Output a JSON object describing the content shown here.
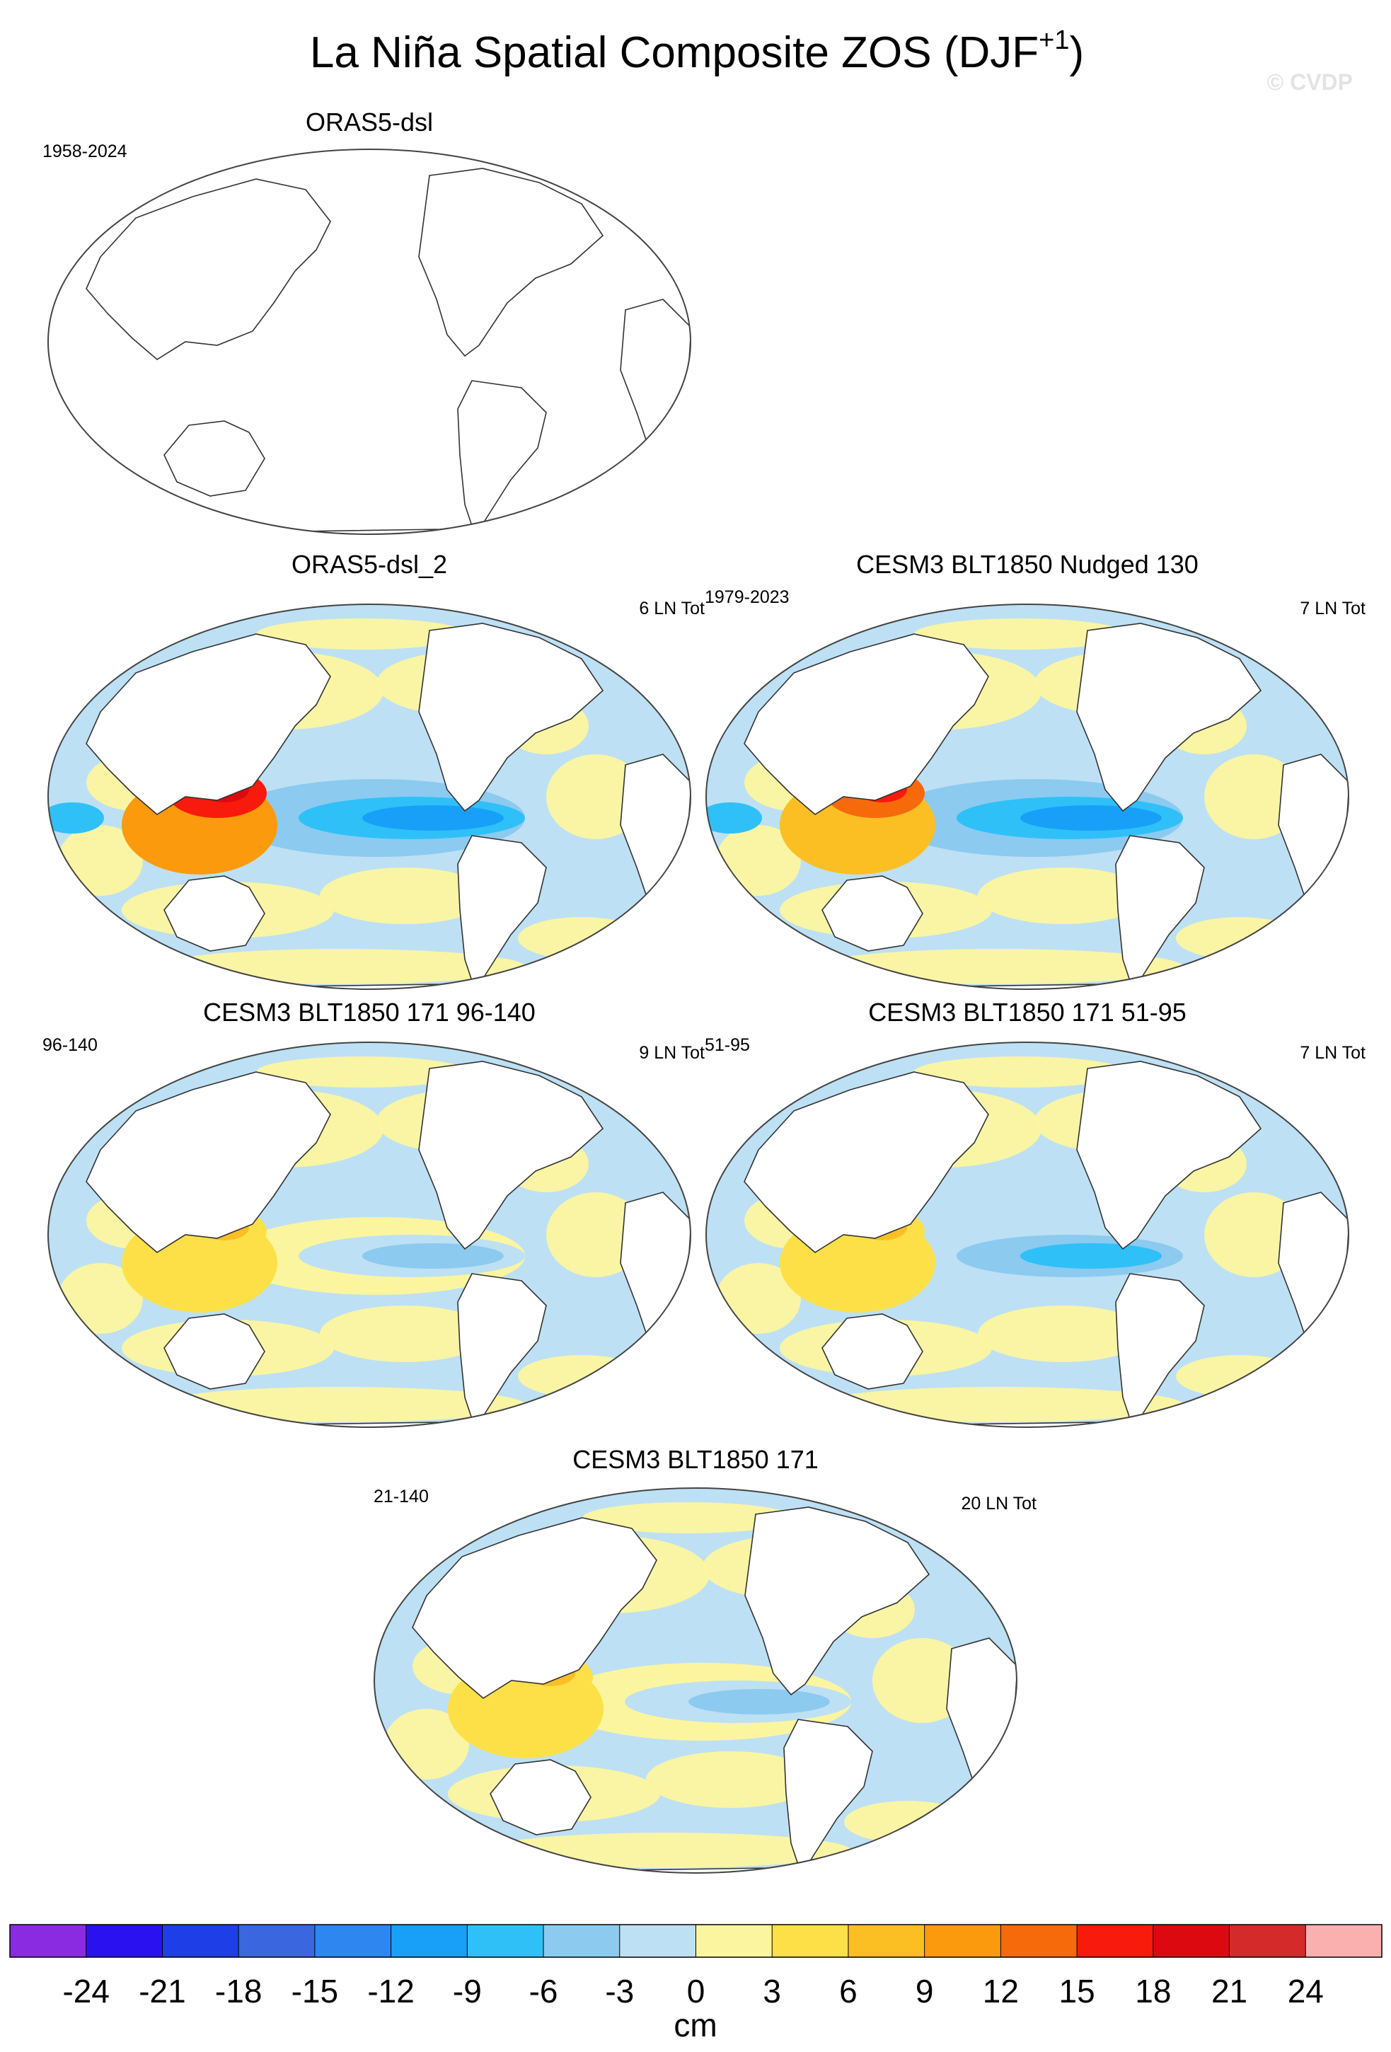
{
  "figure": {
    "title": "La Niña Spatial Composite ZOS (DJF",
    "title_superscript": "+1",
    "title_suffix": ")",
    "watermark": "© CVDP"
  },
  "panels": [
    {
      "id": "p1",
      "title": "ORAS5-dsl",
      "left_label": "1958-2024",
      "right_label": "",
      "pattern": "blank"
    },
    {
      "id": "p2",
      "title": "ORAS5-dsl_2",
      "left_label": "",
      "right_label": "6 LN Tot",
      "pattern": "strong"
    },
    {
      "id": "p3",
      "title": "CESM3 BLT1850 Nudged 130",
      "left_label": "1979-2023",
      "right_label": "7 LN Tot",
      "pattern": "strong"
    },
    {
      "id": "p4",
      "title": "CESM3 BLT1850 171 96-140",
      "left_label": "96-140",
      "right_label": "9 LN Tot",
      "pattern": "weak"
    },
    {
      "id": "p5",
      "title": "CESM3 BLT1850 171 51-95",
      "left_label": "51-95",
      "right_label": "7 LN Tot",
      "pattern": "weak"
    },
    {
      "id": "p6",
      "title": "CESM3 BLT1850 171",
      "left_label": "21-140",
      "right_label": "20 LN Tot",
      "pattern": "weak"
    }
  ],
  "chart_data": {
    "type": "heatmap",
    "variable": "ZOS",
    "season": "DJF+1",
    "projection": "Robinson (Pacific-centered)",
    "colorbar": {
      "label": "cm",
      "ticks": [
        "-24",
        "-21",
        "-18",
        "-15",
        "-12",
        "-9",
        "-6",
        "-3",
        "0",
        "3",
        "6",
        "9",
        "12",
        "15",
        "18",
        "21",
        "24"
      ],
      "colors": [
        "#8a2be2",
        "#2a12f0",
        "#1e3ee8",
        "#3a66e0",
        "#2e86f0",
        "#18a0f8",
        "#2fc0f8",
        "#8ccaf0",
        "#bde0f4",
        "#fcf5a0",
        "#fde047",
        "#fbbf24",
        "#fa9a0c",
        "#f66a0c",
        "#f81a0c",
        "#dc0a10",
        "#d42a2a",
        "#fbb0b0"
      ]
    },
    "panel_composites": [
      {
        "panel": "ORAS5-dsl",
        "years": "1958-2024",
        "events": "",
        "west_pacific_max_cm": null,
        "east_pacific_min_cm": null
      },
      {
        "panel": "ORAS5-dsl_2",
        "years": "",
        "events": "6 LN Tot",
        "west_pacific_max_cm": 18,
        "east_pacific_min_cm": -12
      },
      {
        "panel": "CESM3 BLT1850 Nudged 130",
        "years": "1979-2023",
        "events": "7 LN Tot",
        "west_pacific_max_cm": 15,
        "east_pacific_min_cm": -12
      },
      {
        "panel": "CESM3 BLT1850 171 96-140",
        "years": "96-140",
        "events": "9 LN Tot",
        "west_pacific_max_cm": 6,
        "east_pacific_min_cm": -6
      },
      {
        "panel": "CESM3 BLT1850 171 51-95",
        "years": "51-95",
        "events": "7 LN Tot",
        "west_pacific_max_cm": 6,
        "east_pacific_min_cm": -9
      },
      {
        "panel": "CESM3 BLT1850 171",
        "years": "21-140",
        "events": "20 LN Tot",
        "west_pacific_max_cm": 6,
        "east_pacific_min_cm": -6
      }
    ]
  }
}
